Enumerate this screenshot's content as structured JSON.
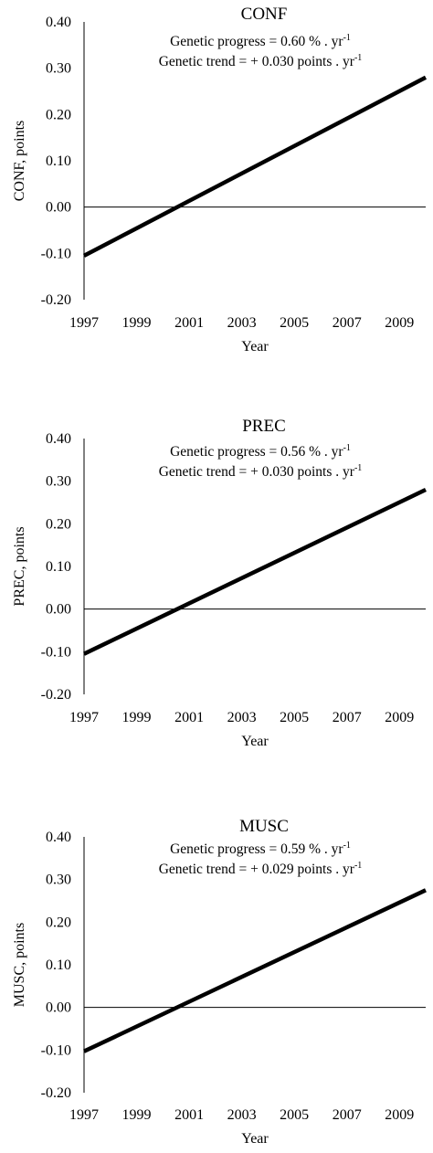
{
  "chart_data": [
    {
      "type": "line",
      "title": "CONF",
      "xlabel": "Year",
      "ylabel": "CONF, points",
      "x_ticks": [
        "1997",
        "1999",
        "2001",
        "2003",
        "2005",
        "2007",
        "2009"
      ],
      "y_ticks": [
        "0.40",
        "0.30",
        "0.20",
        "0.10",
        "0.00",
        "-0.10",
        "-0.20"
      ],
      "xlim": [
        1997,
        2010
      ],
      "ylim": [
        -0.2,
        0.4
      ],
      "annotations": [
        {
          "text": "Genetic progress = 0.60 % . yr",
          "sup": "-1"
        },
        {
          "text": "Genetic trend = + 0.030 points . yr",
          "sup": "-1"
        }
      ],
      "series": [
        {
          "x": [
            1997,
            2010
          ],
          "y": [
            -0.105,
            0.28
          ]
        }
      ],
      "reference_line_y": 0
    },
    {
      "type": "line",
      "title": "PREC",
      "xlabel": "Year",
      "ylabel": "PREC, points",
      "x_ticks": [
        "1997",
        "1999",
        "2001",
        "2003",
        "2005",
        "2007",
        "2009"
      ],
      "y_ticks": [
        "0.40",
        "0.30",
        "0.20",
        "0.10",
        "0.00",
        "-0.10",
        "-0.20"
      ],
      "xlim": [
        1997,
        2010
      ],
      "ylim": [
        -0.2,
        0.4
      ],
      "annotations": [
        {
          "text": "Genetic progress = 0.56 % . yr",
          "sup": "-1"
        },
        {
          "text": "Genetic trend = + 0.030 points . yr",
          "sup": "-1"
        }
      ],
      "series": [
        {
          "x": [
            1997,
            2010
          ],
          "y": [
            -0.105,
            0.28
          ]
        }
      ],
      "reference_line_y": 0
    },
    {
      "type": "line",
      "title": "MUSC",
      "xlabel": "Year",
      "ylabel": "MUSC, points",
      "x_ticks": [
        "1997",
        "1999",
        "2001",
        "2003",
        "2005",
        "2007",
        "2009"
      ],
      "y_ticks": [
        "0.40",
        "0.30",
        "0.20",
        "0.10",
        "0.00",
        "-0.10",
        "-0.20"
      ],
      "xlim": [
        1997,
        2010
      ],
      "ylim": [
        -0.2,
        0.4
      ],
      "annotations": [
        {
          "text": "Genetic progress = 0.59 % . yr",
          "sup": "-1"
        },
        {
          "text": "Genetic trend = + 0.029 points . yr",
          "sup": "-1"
        }
      ],
      "series": [
        {
          "x": [
            1997,
            2010
          ],
          "y": [
            -0.103,
            0.275
          ]
        }
      ],
      "reference_line_y": 0
    }
  ]
}
